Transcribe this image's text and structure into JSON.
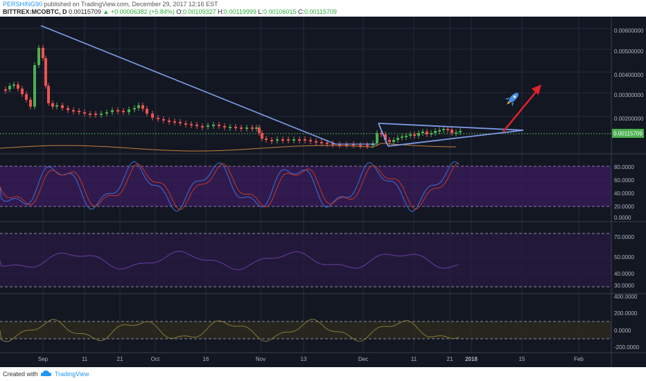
{
  "header": {
    "username": "PERSHING90",
    "published_text": "published on TradingView.com, December 29, 2017 12:16 EST",
    "symbol": "BITTREX:MCOBTC, D",
    "price": "0.00115709",
    "change": "▲ +0.00006382 (+5.84%)",
    "open_label": "O:",
    "open_value": "0.00109327",
    "high_label": "H:",
    "high_value": "0.00119999",
    "low_label": "L:",
    "low_value": "0.00106015",
    "close_label": "C:",
    "close_value": "0.00115709"
  },
  "footer": {
    "created_with": "Created with",
    "brand": "TradingView"
  },
  "colors": {
    "background": "#131722",
    "grid": "#262b3e",
    "up": "#4caf50",
    "down": "#ef5350",
    "trendline": "#7f9de8",
    "arrow": "#e3212b",
    "ma": "#c9803c",
    "stoch_k": "#3f6fd8",
    "stoch_d": "#c0392b",
    "stoch_band": "#3b1c5c",
    "price_tag": "#4caf50"
  },
  "chart_data": [
    {
      "type": "candlestick",
      "panel": "price",
      "x_ticks": [
        "Sep",
        "11",
        "21",
        "Oct",
        "16",
        "Nov",
        "13",
        "Dec",
        "11",
        "21",
        "2018",
        "15",
        "Feb"
      ],
      "y_ticks": [
        "0.00600000",
        "0.00500000",
        "0.00400000",
        "0.00300000",
        "0.00200000",
        "0.00115709"
      ],
      "ylim": [
        0.0008,
        0.0065
      ],
      "last_price_label": "0.00115709",
      "icon": "rocket-icon"
    },
    {
      "type": "line",
      "panel": "stochastic-rsi",
      "y_ticks": [
        "80.0000",
        "60.0000",
        "40.0000",
        "20.0000",
        "0.0000"
      ],
      "ylim": [
        0,
        100
      ]
    },
    {
      "type": "line",
      "panel": "rsi",
      "y_ticks": [
        "70.0000",
        "50.0000",
        "40.0000",
        "30.0000"
      ],
      "ylim": [
        25,
        80
      ]
    },
    {
      "type": "line",
      "panel": "cci",
      "y_ticks": [
        "400.0000",
        "200.0000",
        "0.0000",
        "-200.0000"
      ],
      "ylim": [
        -300,
        420
      ]
    }
  ]
}
